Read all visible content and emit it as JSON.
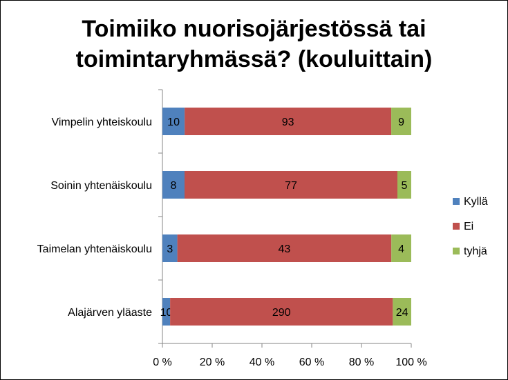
{
  "chart_data": {
    "type": "bar",
    "orientation": "horizontal",
    "stacked": "percent",
    "title": [
      "Toimiiko nuorisojärjestössä tai",
      "toimintaryhmässä? (kouluittain)"
    ],
    "categories": [
      "Vimpelin yhteiskoulu",
      "Soinin yhtenäiskoulu",
      "Taimelan yhtenäiskoulu",
      "Alajärven yläaste"
    ],
    "series": [
      {
        "name": "Kyllä",
        "color": "#4f81bd",
        "values": [
          10,
          8,
          3,
          10
        ]
      },
      {
        "name": "Ei",
        "color": "#c0504d",
        "values": [
          93,
          77,
          43,
          290
        ]
      },
      {
        "name": "tyhjä",
        "color": "#9bbb59",
        "values": [
          9,
          5,
          4,
          24
        ]
      }
    ],
    "xlim": [
      0,
      100
    ],
    "x_ticks": [
      "0 %",
      "20 %",
      "40 %",
      "60 %",
      "80 %",
      "100 %"
    ],
    "grid": false,
    "legend_position": "right"
  }
}
